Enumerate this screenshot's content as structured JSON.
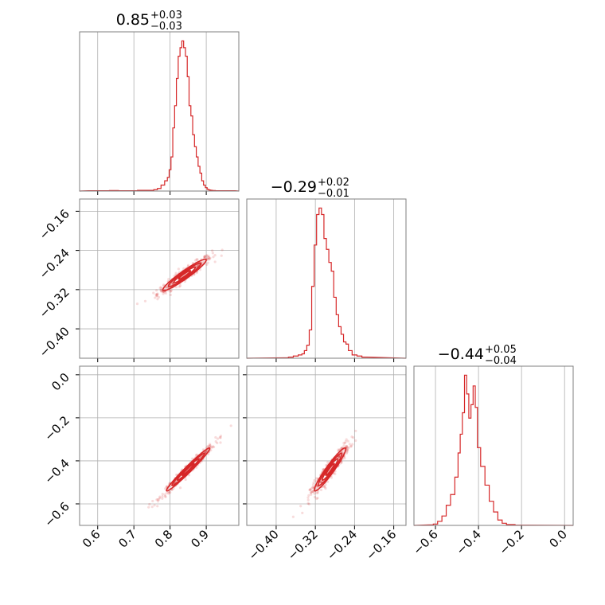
{
  "chart_data": {
    "type": "corner",
    "parameters": [
      {
        "title": {
          "median": "0.85",
          "plus": "+0.03",
          "minus": "−0.03"
        },
        "range": [
          0.55,
          0.99
        ],
        "ticks": [
          {
            "value": 0.6,
            "label": "0.6"
          },
          {
            "value": 0.7,
            "label": "0.7"
          },
          {
            "value": 0.8,
            "label": "0.8"
          },
          {
            "value": 0.9,
            "label": "0.9"
          }
        ]
      },
      {
        "title": {
          "median": "−0.29",
          "plus": "+0.02",
          "minus": "−0.01"
        },
        "range": [
          -0.46,
          -0.135
        ],
        "ticks": [
          {
            "value": -0.4,
            "label": "−0.40"
          },
          {
            "value": -0.32,
            "label": "−0.32"
          },
          {
            "value": -0.24,
            "label": "−0.24"
          },
          {
            "value": -0.16,
            "label": "−0.16"
          }
        ]
      },
      {
        "title": {
          "median": "−0.44",
          "plus": "+0.05",
          "minus": "−0.04"
        },
        "range": [
          -0.7,
          0.04
        ],
        "ticks": [
          {
            "value": -0.6,
            "label": "−0.6"
          },
          {
            "value": -0.4,
            "label": "−0.4"
          },
          {
            "value": -0.2,
            "label": "−0.2"
          },
          {
            "value": 0.0,
            "label": "0.0"
          }
        ]
      }
    ],
    "histograms": [
      {
        "bins": [
          0.59,
          0.62,
          0.645,
          0.67,
          0.75,
          0.76,
          0.77,
          0.78,
          0.79,
          0.795,
          0.8,
          0.805,
          0.81,
          0.815,
          0.82,
          0.825,
          0.83,
          0.835,
          0.84,
          0.845,
          0.85,
          0.855,
          0.86,
          0.865,
          0.87,
          0.875,
          0.88,
          0.885,
          0.89,
          0.895,
          0.9,
          0.905,
          0.91,
          0.915,
          0.92,
          0.93,
          0.95,
          0.97
        ],
        "counts": [
          0.2,
          0.2,
          0.3,
          0.2,
          0.4,
          0.8,
          1.5,
          3.5,
          6.0,
          8.0,
          12.5,
          20.0,
          37.0,
          50.0,
          66.0,
          79.0,
          84.0,
          88.0,
          84.0,
          79.0,
          67.0,
          50.0,
          44.0,
          33.0,
          26.0,
          20.0,
          14.5,
          10.5,
          6.0,
          3.5,
          2.0,
          1.0,
          0.6,
          0.4,
          0.3,
          0.2,
          0.2,
          0.2
        ]
      },
      {
        "bins": [
          -0.38,
          -0.37,
          -0.36,
          -0.35,
          -0.345,
          -0.34,
          -0.335,
          -0.33,
          -0.325,
          -0.32,
          -0.315,
          -0.31,
          -0.305,
          -0.3,
          -0.295,
          -0.29,
          -0.285,
          -0.28,
          -0.275,
          -0.27,
          -0.265,
          -0.26,
          -0.255,
          -0.25,
          -0.24,
          -0.23,
          -0.22
        ],
        "counts": [
          0.2,
          0.5,
          1.0,
          1.5,
          2.0,
          3.5,
          6.0,
          13.0,
          33.0,
          52.0,
          66.0,
          69.0,
          66.0,
          55.0,
          50.0,
          44.0,
          40.0,
          28.0,
          20.0,
          14.5,
          11.0,
          7.5,
          6.5,
          3.5,
          1.5,
          1.0,
          0.5
        ]
      },
      {
        "bins": [
          -0.62,
          -0.6,
          -0.58,
          -0.56,
          -0.54,
          -0.52,
          -0.5,
          -0.49,
          -0.48,
          -0.47,
          -0.46,
          -0.45,
          -0.44,
          -0.43,
          -0.42,
          -0.41,
          -0.4,
          -0.38,
          -0.36,
          -0.34,
          -0.32,
          -0.3,
          -0.28,
          -0.26,
          -0.2
        ],
        "counts": [
          0.2,
          0.5,
          1.5,
          3.5,
          7.5,
          11.5,
          18.0,
          27.0,
          34.0,
          42.0,
          56.0,
          49.0,
          40.0,
          45.0,
          52.0,
          44.0,
          29.0,
          22.0,
          15.0,
          9.0,
          5.0,
          2.0,
          0.8,
          0.3,
          0.1
        ]
      }
    ],
    "pairs": [
      {
        "x_param": 0,
        "y_param": 1,
        "center": [
          0.84,
          -0.29
        ],
        "sd": [
          0.03,
          0.016
        ],
        "rho": 0.95
      },
      {
        "x_param": 0,
        "y_param": 2,
        "center": [
          0.85,
          -0.44
        ],
        "sd": [
          0.03,
          0.05
        ],
        "rho": 0.98
      },
      {
        "x_param": 1,
        "y_param": 2,
        "center": [
          -0.29,
          -0.44
        ],
        "sd": [
          0.016,
          0.05
        ],
        "rho": 0.95
      }
    ],
    "color": "#d62728",
    "grid": true,
    "legend": "none"
  }
}
